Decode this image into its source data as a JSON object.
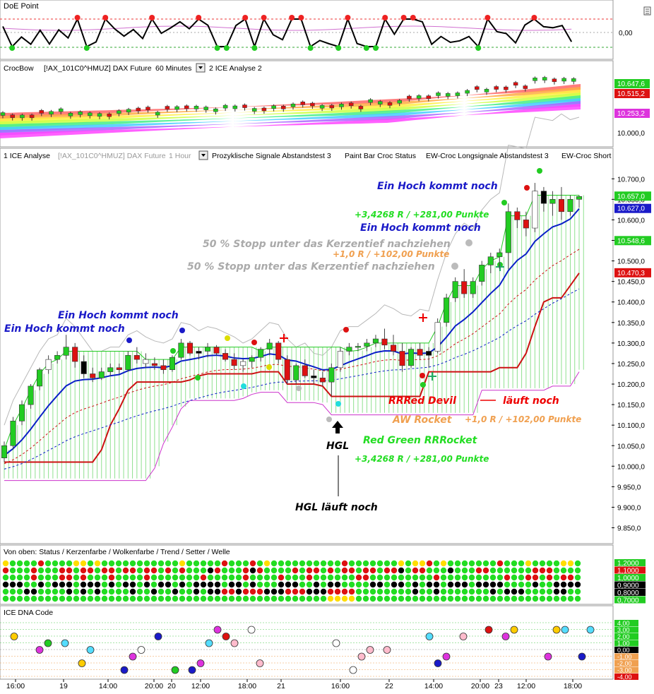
{
  "colors": {
    "grid_line": "#b0b0b0",
    "bull": "#22cc22",
    "bear": "#dd1111",
    "blue_line": "#0a1fc7",
    "red_line": "#cc1111",
    "magenta": "#cc33cc",
    "gray_line": "#b8b8b8",
    "annotation_blue": "#1a1ac8",
    "annotation_green": "#22dd22",
    "annotation_red": "#ee0000",
    "annotation_orange": "#f0a050",
    "annotation_gray": "#aaaaaa"
  },
  "panels": {
    "doe": {
      "title": "DoE Point",
      "y_labels": [
        "0,00"
      ]
    },
    "crocbow": {
      "title": "CrocBow",
      "instrument": "[!AX_101C0^HMUZ] DAX Future",
      "timeframe": "60 Minutes",
      "extra": "2 ICE Analyse 2",
      "y_labels": [
        "10.000,0"
      ],
      "badges": [
        {
          "text": "10.647,6",
          "color": "#22cc22"
        },
        {
          "text": "10.515,2",
          "color": "#dd1111"
        },
        {
          "text": "10.253,2",
          "color": "#dd33dd"
        }
      ]
    },
    "main": {
      "tab1": "1 ICE Analyse",
      "instrument": "[!AX_101C0^HMUZ] DAX Future",
      "timeframe": "1 Hour",
      "study1": "Prozyklische Signale Abstandstest 3",
      "study2": "Paint Bar Croc Status",
      "study3": "EW-Croc Longsignale Abstandstest 3",
      "study4": "EW-Croc Short",
      "y_ticks": [
        "10.700,0",
        "10.650,0",
        "10.600,0",
        "10.550,0",
        "10.500,0",
        "10.450,0",
        "10.400,0",
        "10.350,0",
        "10.300,0",
        "10.250,0",
        "10.200,0",
        "10.150,0",
        "10.100,0",
        "10.050,0",
        "10.000,0",
        "9.950,0",
        "9.900,0",
        "9.850,0"
      ],
      "badges": [
        {
          "text": "10.657,0",
          "color": "#22cc22"
        },
        {
          "text": "10.627,0",
          "color": "#1a1ac8"
        },
        {
          "text": "10.548,6",
          "color": "#22cc22"
        },
        {
          "text": "10.470,3",
          "color": "#dd1111"
        }
      ],
      "annotations": {
        "hoch1": "Ein Hoch kommt noch",
        "hoch2": "Ein Hoch kommt noch",
        "hoch3": "Ein Hoch kommt noch",
        "hoch4": "Ein Hoch kommt noch",
        "gain1": "+3,4268 R / +281,00 Punkte",
        "stopp1": "50 % Stopp unter das Kerzentief nachziehen",
        "gain2": "+1,0 R / +102,00 Punkte",
        "stopp2": "50 % Stopp unter das Kerzentief nachziehen",
        "devil": "RRRed Devil",
        "laeuft": "läuft noch",
        "rocket": "AW Rocket",
        "gain3": "+1,0 R / +102,00 Punkte",
        "hgl": "HGL",
        "rrrocket": "Red Green RRRocket",
        "gain4": "+3,4268 R / +281,00 Punkte",
        "hgl_noch": "HGL läuft noch"
      }
    },
    "status": {
      "title": "Von oben: Status / Kerzenfarbe / Wolkenfarbe / Trend / Setter / Welle",
      "badges": [
        {
          "text": "1,2000",
          "color": "#22cc22"
        },
        {
          "text": "1,1000",
          "color": "#dd1111"
        },
        {
          "text": "1,0000",
          "color": "#22cc22"
        },
        {
          "text": "0,9000",
          "color": "#000000"
        },
        {
          "text": "0,8000",
          "color": "#000000"
        },
        {
          "text": "0,7000",
          "color": "#22cc22"
        }
      ]
    },
    "dna": {
      "title": "ICE DNA Code",
      "badges": [
        {
          "text": "4,00",
          "color": "#22cc22"
        },
        {
          "text": "3,00",
          "color": "#22cc22"
        },
        {
          "text": "2,00",
          "color": "#22cc22"
        },
        {
          "text": "1,00",
          "color": "#22cc22"
        },
        {
          "text": "0,00",
          "color": "#000000"
        },
        {
          "text": "-1,00",
          "color": "#f0a050"
        },
        {
          "text": "-2,00",
          "color": "#f0a050"
        },
        {
          "text": "-3,00",
          "color": "#f0a050"
        },
        {
          "text": "-4,00",
          "color": "#dd1111"
        }
      ]
    }
  },
  "time_axis": [
    "16:00",
    "19",
    "14:00",
    "20:00",
    "20",
    "12:00",
    "18:00",
    "21",
    "16:00",
    "22",
    "14:00",
    "20:00",
    "23",
    "12:00",
    "18:00"
  ],
  "chart_data": {
    "type": "candlestick",
    "instrument": "[!AX_101C0^HMUZ] DAX Future",
    "timeframe": "1 Hour",
    "y_unit": "points",
    "ylim": [
      9820,
      10740
    ],
    "candles": [
      [
        10020,
        10060,
        10010,
        10050
      ],
      [
        10050,
        10120,
        10040,
        10110
      ],
      [
        10110,
        10160,
        10100,
        10150
      ],
      [
        10150,
        10200,
        10140,
        10195
      ],
      [
        10195,
        10240,
        10185,
        10235
      ],
      [
        10235,
        10270,
        10225,
        10260
      ],
      [
        10260,
        10280,
        10250,
        10270
      ],
      [
        10270,
        10320,
        10260,
        10290
      ],
      [
        10290,
        10300,
        10240,
        10255
      ],
      [
        10255,
        10270,
        10215,
        10225
      ],
      [
        10225,
        10240,
        10205,
        10215
      ],
      [
        10215,
        10240,
        10210,
        10230
      ],
      [
        10230,
        10250,
        10220,
        10240
      ],
      [
        10240,
        10250,
        10225,
        10235
      ],
      [
        10235,
        10280,
        10230,
        10270
      ],
      [
        10270,
        10290,
        10250,
        10260
      ],
      [
        10260,
        10275,
        10240,
        10250
      ],
      [
        10250,
        10265,
        10235,
        10245
      ],
      [
        10245,
        10260,
        10225,
        10235
      ],
      [
        10235,
        10270,
        10230,
        10265
      ],
      [
        10265,
        10310,
        10260,
        10300
      ],
      [
        10300,
        10305,
        10270,
        10275
      ],
      [
        10275,
        10290,
        10260,
        10280
      ],
      [
        10280,
        10300,
        10265,
        10290
      ],
      [
        10290,
        10295,
        10270,
        10275
      ],
      [
        10275,
        10285,
        10255,
        10260
      ],
      [
        10260,
        10275,
        10235,
        10245
      ],
      [
        10245,
        10260,
        10230,
        10255
      ],
      [
        10255,
        10270,
        10240,
        10265
      ],
      [
        10265,
        10290,
        10255,
        10285
      ],
      [
        10285,
        10310,
        10270,
        10300
      ],
      [
        10300,
        10305,
        10250,
        10260
      ],
      [
        10260,
        10270,
        10200,
        10210
      ],
      [
        10210,
        10250,
        10200,
        10245
      ],
      [
        10245,
        10260,
        10215,
        10220
      ],
      [
        10220,
        10235,
        10200,
        10215
      ],
      [
        10215,
        10230,
        10195,
        10205
      ],
      [
        10205,
        10250,
        10170,
        10240
      ],
      [
        10240,
        10290,
        10230,
        10280
      ],
      [
        10280,
        10300,
        10270,
        10290
      ],
      [
        10290,
        10300,
        10280,
        10292
      ],
      [
        10292,
        10310,
        10280,
        10300
      ],
      [
        10300,
        10320,
        10290,
        10310
      ],
      [
        10310,
        10335,
        10285,
        10295
      ],
      [
        10295,
        10320,
        10270,
        10280
      ],
      [
        10280,
        10300,
        10230,
        10245
      ],
      [
        10245,
        10290,
        10240,
        10285
      ],
      [
        10285,
        10300,
        10260,
        10270
      ],
      [
        10270,
        10290,
        10240,
        10280
      ],
      [
        10280,
        10360,
        10275,
        10350
      ],
      [
        10350,
        10420,
        10340,
        10410
      ],
      [
        10410,
        10460,
        10400,
        10450
      ],
      [
        10450,
        10480,
        10410,
        10420
      ],
      [
        10420,
        10460,
        10410,
        10450
      ],
      [
        10450,
        10500,
        10440,
        10490
      ],
      [
        10490,
        10520,
        10470,
        10510
      ],
      [
        10510,
        10530,
        10480,
        10520
      ],
      [
        10520,
        10640,
        10480,
        10620
      ],
      [
        10620,
        10630,
        10580,
        10600
      ],
      [
        10600,
        10620,
        10560,
        10580
      ],
      [
        10580,
        10690,
        10570,
        10670
      ],
      [
        10670,
        10680,
        10620,
        10640
      ],
      [
        10640,
        10670,
        10610,
        10650
      ],
      [
        10650,
        10680,
        10600,
        10620
      ],
      [
        10620,
        10660,
        10610,
        10650
      ],
      [
        10650,
        10660,
        10630,
        10657
      ]
    ],
    "blue_line_end": 10627,
    "red_line_end": 10470.3,
    "cloud_top_end": 10548.6,
    "series": [
      {
        "name": "DoE Point"
      },
      {
        "name": "CrocBow"
      },
      {
        "name": "ICE DNA Code"
      }
    ]
  }
}
